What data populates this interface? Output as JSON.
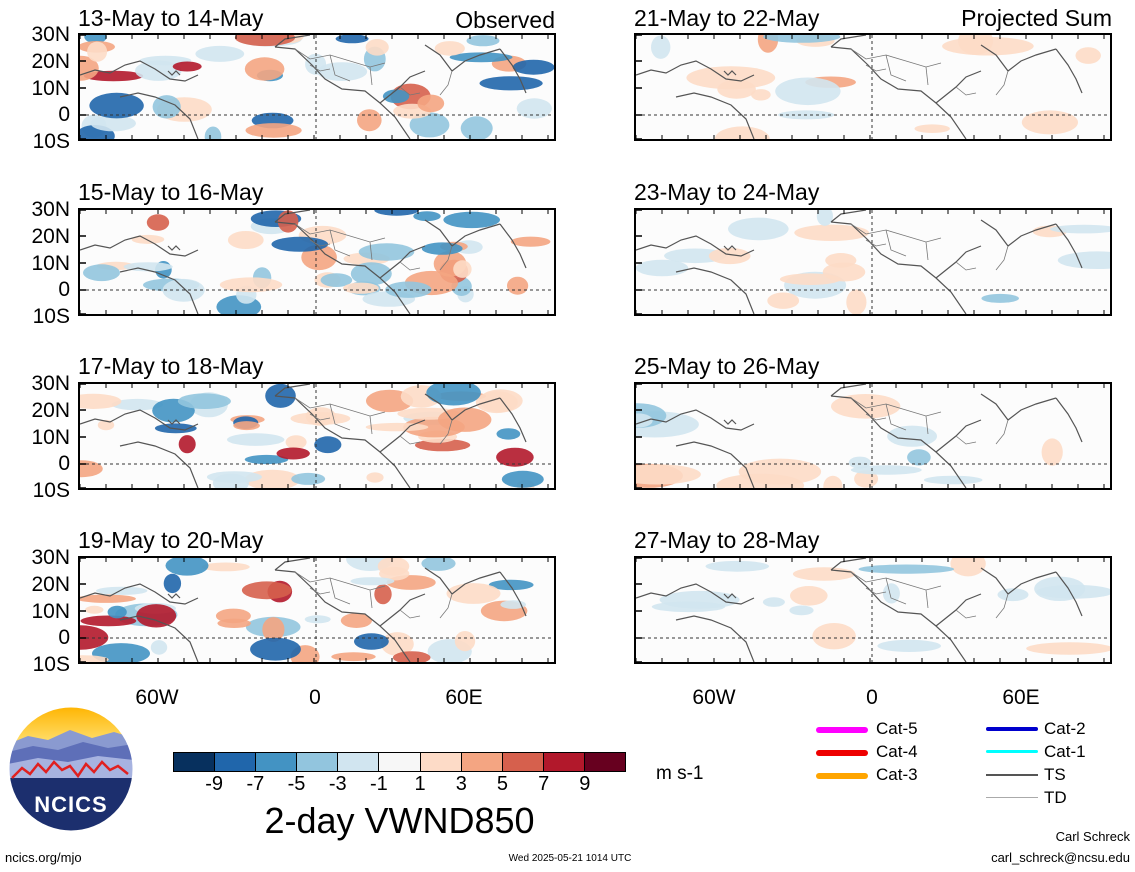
{
  "panels": [
    {
      "title": "13-May to 14-May",
      "label": "Observed"
    },
    {
      "title": "15-May to 16-May",
      "label": ""
    },
    {
      "title": "17-May to 18-May",
      "label": ""
    },
    {
      "title": "19-May to 20-May",
      "label": ""
    },
    {
      "title": "21-May to 22-May",
      "label": "Projected Sum"
    },
    {
      "title": "23-May to 24-May",
      "label": ""
    },
    {
      "title": "25-May to 26-May",
      "label": ""
    },
    {
      "title": "27-May to 28-May",
      "label": ""
    }
  ],
  "y_axis_labels": [
    "30N",
    "20N",
    "10N",
    "0",
    "10S"
  ],
  "x_axis_labels": [
    "60W",
    "0",
    "60E"
  ],
  "colorbar": {
    "colors": [
      "#07305e",
      "#2066ab",
      "#4393c3",
      "#92c5de",
      "#d1e5f0",
      "#f7f7f7",
      "#fddbc7",
      "#f4a582",
      "#d6604d",
      "#b2182b",
      "#67001f"
    ],
    "ticks": [
      "-9",
      "-7",
      "-5",
      "-3",
      "-1",
      "1",
      "3",
      "5",
      "7",
      "9"
    ],
    "units": "m s-1",
    "title": "2-day VWND850"
  },
  "legend": [
    {
      "label": "Cat-5",
      "color": "#ff00ff"
    },
    {
      "label": "Cat-4",
      "color": "#ee0000"
    },
    {
      "label": "Cat-3",
      "color": "#ffa500"
    },
    {
      "label": "Cat-2",
      "color": "#0000cd"
    },
    {
      "label": "Cat-1",
      "color": "#00ffff"
    },
    {
      "label": "TS",
      "color": "#555555"
    },
    {
      "label": "TD",
      "color": "#aaaaaa"
    }
  ],
  "logo": {
    "text": "NCICS"
  },
  "footer": {
    "left": "ncics.org/mjo",
    "center": "Wed 2025-05-21 1014 UTC",
    "author": "Carl Schreck",
    "email": "carl_schreck@ncsu.edu"
  }
}
